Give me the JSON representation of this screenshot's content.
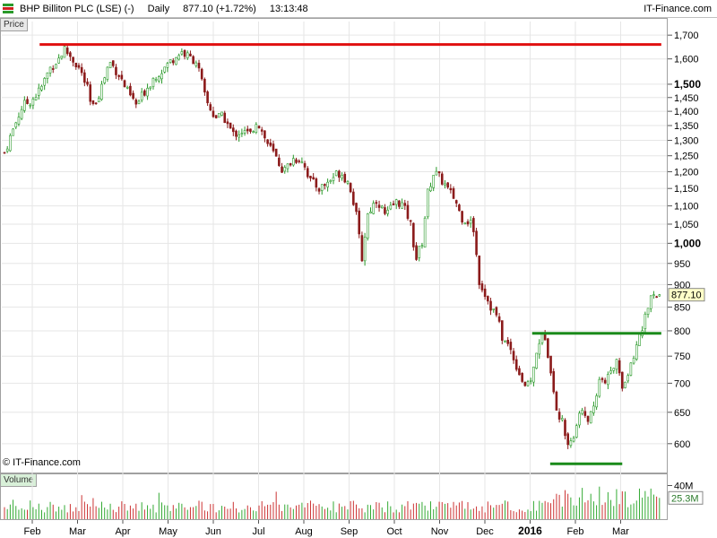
{
  "header": {
    "instrument": "BHP Billiton PLC (LSE) (-)",
    "period": "Daily",
    "quote": "877.10 (+1.72%)",
    "time": "13:13:48",
    "brand": "IT-Finance.com"
  },
  "panels": {
    "price_label": "Price",
    "volume_label": "Volume",
    "copyright": "© IT-Finance.com"
  },
  "colors": {
    "up": "#2a9a2a",
    "down": "#8b1a1a",
    "resistance": "#e01010",
    "support": "#1a8a1a",
    "last_price_bg": "#ffffc8"
  },
  "chart_data": {
    "type": "candlestick",
    "x_ticks": [
      {
        "label": "Feb",
        "month": 0
      },
      {
        "label": "Mar",
        "month": 1
      },
      {
        "label": "Apr",
        "month": 2
      },
      {
        "label": "May",
        "month": 3
      },
      {
        "label": "Jun",
        "month": 4
      },
      {
        "label": "Jul",
        "month": 5
      },
      {
        "label": "Aug",
        "month": 6
      },
      {
        "label": "Sep",
        "month": 7
      },
      {
        "label": "Oct",
        "month": 8
      },
      {
        "label": "Nov",
        "month": 9
      },
      {
        "label": "Dec",
        "month": 10
      },
      {
        "label": "2016",
        "month": 11
      },
      {
        "label": "Feb",
        "month": 12
      },
      {
        "label": "Mar",
        "month": 13
      }
    ],
    "y_scale": "log",
    "y_range": [
      560,
      1760
    ],
    "y_ticks": [
      600,
      650,
      700,
      750,
      800,
      850,
      900,
      950,
      1000,
      1050,
      1100,
      1150,
      1200,
      1250,
      1300,
      1350,
      1400,
      1450,
      1500,
      1600,
      1700
    ],
    "y_tick_labels": [
      "600",
      "650",
      "700",
      "750",
      "800",
      "850",
      "900",
      "950",
      "1,000",
      "1,050",
      "1,100",
      "1,150",
      "1,200",
      "1,250",
      "1,300",
      "1,350",
      "1,400",
      "1,450",
      "1,500",
      "1,600",
      "1,700"
    ],
    "bold_ticks": [
      "1,000",
      "1,500"
    ],
    "last_price": 877.1,
    "last_price_label": "877.10",
    "price_path": [
      [
        0.0,
        1260
      ],
      [
        0.15,
        1340
      ],
      [
        0.3,
        1420
      ],
      [
        0.45,
        1440
      ],
      [
        0.6,
        1480
      ],
      [
        0.75,
        1560
      ],
      [
        0.9,
        1600
      ],
      [
        1.0,
        1640
      ],
      [
        1.1,
        1610
      ],
      [
        1.25,
        1560
      ],
      [
        1.4,
        1470
      ],
      [
        1.45,
        1400
      ],
      [
        1.6,
        1480
      ],
      [
        1.75,
        1590
      ],
      [
        1.9,
        1540
      ],
      [
        2.05,
        1470
      ],
      [
        2.2,
        1420
      ],
      [
        2.35,
        1480
      ],
      [
        2.5,
        1530
      ],
      [
        2.65,
        1560
      ],
      [
        2.8,
        1600
      ],
      [
        2.95,
        1630
      ],
      [
        3.05,
        1610
      ],
      [
        3.2,
        1590
      ],
      [
        3.35,
        1440
      ],
      [
        3.5,
        1380
      ],
      [
        3.65,
        1380
      ],
      [
        3.8,
        1320
      ],
      [
        3.95,
        1330
      ],
      [
        4.1,
        1320
      ],
      [
        4.2,
        1370
      ],
      [
        4.35,
        1300
      ],
      [
        4.5,
        1250
      ],
      [
        4.65,
        1200
      ],
      [
        4.8,
        1240
      ],
      [
        4.95,
        1240
      ],
      [
        5.1,
        1170
      ],
      [
        5.25,
        1150
      ],
      [
        5.4,
        1170
      ],
      [
        5.5,
        1190
      ],
      [
        5.6,
        1200
      ],
      [
        5.75,
        1160
      ],
      [
        5.85,
        1080
      ],
      [
        5.95,
        960
      ],
      [
        6.05,
        1080
      ],
      [
        6.2,
        1120
      ],
      [
        6.35,
        1070
      ],
      [
        6.5,
        1110
      ],
      [
        6.6,
        1110
      ],
      [
        6.75,
        1060
      ],
      [
        6.85,
        960
      ],
      [
        6.95,
        1000
      ],
      [
        7.05,
        1140
      ],
      [
        7.15,
        1200
      ],
      [
        7.3,
        1170
      ],
      [
        7.4,
        1140
      ],
      [
        7.5,
        1120
      ],
      [
        7.6,
        1070
      ],
      [
        7.7,
        1060
      ],
      [
        7.8,
        1050
      ],
      [
        7.9,
        910
      ],
      [
        8.0,
        880
      ],
      [
        8.1,
        850
      ],
      [
        8.2,
        830
      ],
      [
        8.3,
        780
      ],
      [
        8.4,
        770
      ],
      [
        8.5,
        740
      ],
      [
        8.6,
        710
      ],
      [
        8.7,
        690
      ],
      [
        8.8,
        720
      ],
      [
        8.9,
        780
      ],
      [
        9.0,
        790
      ],
      [
        9.1,
        720
      ],
      [
        9.2,
        650
      ],
      [
        9.3,
        630
      ],
      [
        9.4,
        600
      ],
      [
        9.5,
        620
      ],
      [
        9.6,
        660
      ],
      [
        9.7,
        640
      ],
      [
        9.8,
        650
      ],
      [
        9.9,
        710
      ],
      [
        10.0,
        700
      ],
      [
        10.1,
        720
      ],
      [
        10.2,
        750
      ],
      [
        10.3,
        690
      ],
      [
        10.4,
        720
      ],
      [
        10.5,
        760
      ],
      [
        10.6,
        800
      ],
      [
        10.7,
        850
      ],
      [
        10.8,
        877
      ]
    ],
    "x_span_months": 10.95,
    "lines": [
      {
        "name": "",
        "price": 1660,
        "from": 0.6,
        "to": 10.95,
        "style": "resistance"
      },
      {
        "name": "",
        "price": 795,
        "from": 8.8,
        "to": 10.95,
        "style": "support"
      },
      {
        "name": "",
        "price": 570,
        "from": 9.1,
        "to": 10.3,
        "style": "support"
      }
    ],
    "volume": {
      "y_ticks": [
        "40M"
      ],
      "last_label": "25.3M",
      "max_m": 48,
      "last_m": 25.3
    }
  }
}
